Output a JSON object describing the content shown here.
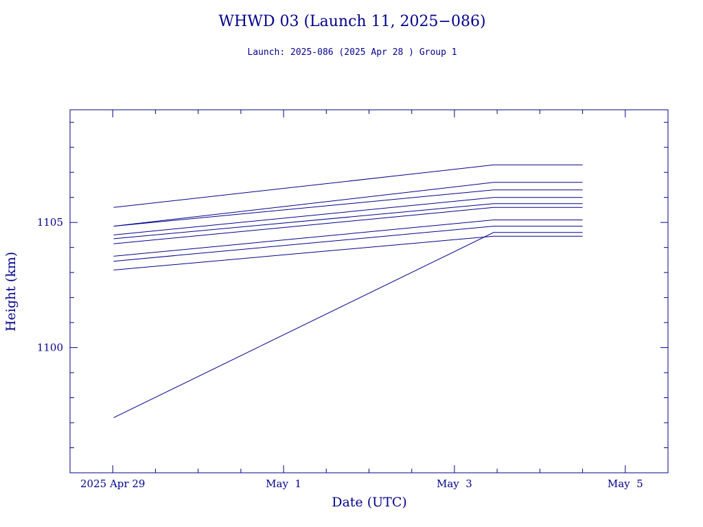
{
  "chart_data": {
    "type": "line",
    "title": "WHWD 03 (Launch 11, 2025−086)",
    "subtitle": "Launch: 2025-086  (2025 Apr 28 )  Group 1",
    "xlabel": "Date (UTC)",
    "ylabel": "Height (km)",
    "xlim": [
      "2025-04-28 12:00",
      "2025-05-05 12:00"
    ],
    "ylim": [
      1095,
      1109.5
    ],
    "x_ticks": [
      {
        "date": "2025-04-29 00:00",
        "label": "2025 Apr 29"
      },
      {
        "date": "2025-05-01 00:00",
        "label": "May  1"
      },
      {
        "date": "2025-05-03 00:00",
        "label": "May  3"
      },
      {
        "date": "2025-05-05 00:00",
        "label": "May  5"
      }
    ],
    "y_ticks": [
      1100,
      1105
    ],
    "x": [
      "2025-04-29 00:15",
      "2025-05-03 11:00",
      "2025-05-04 12:00"
    ],
    "series": [
      {
        "values": [
          1105.6,
          1107.3,
          1107.3
        ]
      },
      {
        "values": [
          1104.85,
          1106.6,
          1106.6
        ]
      },
      {
        "values": [
          1104.85,
          1106.3,
          1106.3
        ]
      },
      {
        "values": [
          1104.5,
          1106.0,
          1106.0
        ]
      },
      {
        "values": [
          1104.35,
          1105.75,
          1105.75
        ]
      },
      {
        "values": [
          1104.15,
          1105.6,
          1105.6
        ]
      },
      {
        "values": [
          1103.65,
          1105.1,
          1105.1
        ]
      },
      {
        "values": [
          1103.45,
          1104.85,
          1104.85
        ]
      },
      {
        "values": [
          1103.1,
          1104.45,
          1104.45
        ]
      },
      {
        "values": [
          1097.2,
          1104.6,
          1104.6
        ]
      }
    ],
    "grid": false,
    "colors": {
      "axis": "#00008b",
      "line": "#00008b"
    }
  }
}
